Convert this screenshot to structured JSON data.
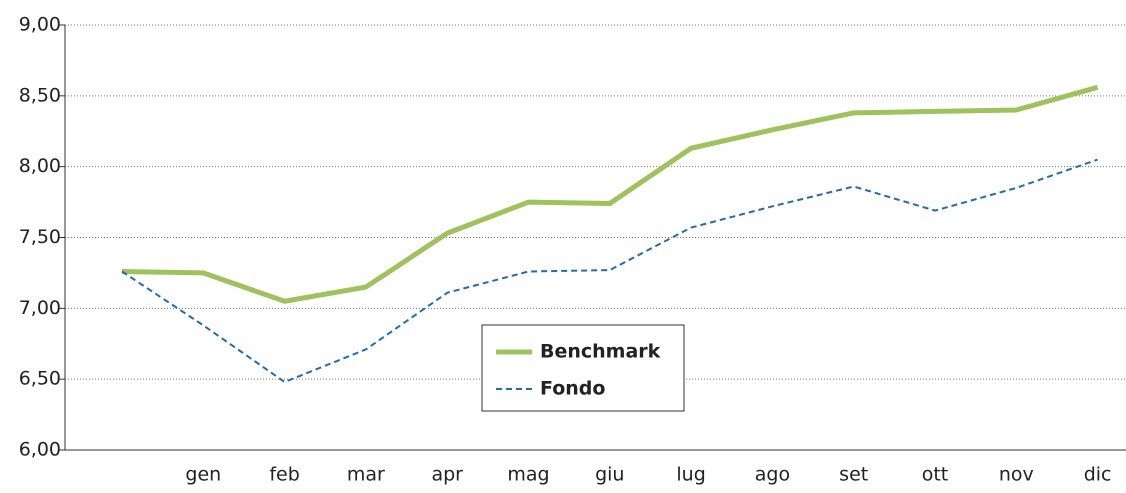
{
  "chart_data": {
    "type": "line",
    "categories": [
      null,
      "gen",
      "feb",
      "mar",
      "apr",
      "mag",
      "giu",
      "lug",
      "ago",
      "set",
      "ott",
      "nov",
      "dic"
    ],
    "series": [
      {
        "name": "Benchmark",
        "color": "#9dc35a",
        "dash": false,
        "values": [
          7.26,
          7.25,
          7.05,
          7.15,
          7.53,
          7.75,
          7.74,
          8.13,
          8.26,
          8.38,
          8.39,
          8.4,
          8.56
        ]
      },
      {
        "name": "Fondo",
        "color": "#1f6db0",
        "dash": true,
        "values": [
          7.26,
          6.88,
          6.48,
          6.71,
          7.11,
          7.26,
          7.27,
          7.57,
          7.72,
          7.86,
          7.69,
          7.85,
          8.05
        ]
      }
    ],
    "ylim": [
      6,
      9
    ],
    "yticks": [
      {
        "value": 6,
        "label": "6,00"
      },
      {
        "value": 6.5,
        "label": "6,50"
      },
      {
        "value": 7,
        "label": "7,00"
      },
      {
        "value": 7.5,
        "label": "7,50"
      },
      {
        "value": 8,
        "label": "8,00"
      },
      {
        "value": 8.5,
        "label": "8,50"
      },
      {
        "value": 9,
        "label": "9,00"
      }
    ],
    "grid": true,
    "legend": "center"
  }
}
